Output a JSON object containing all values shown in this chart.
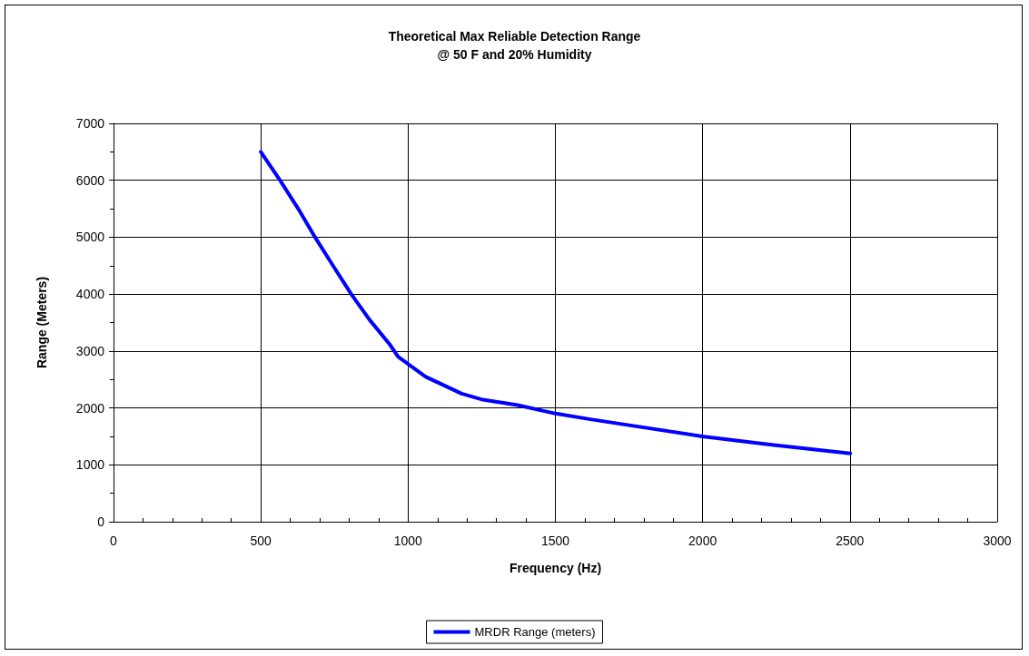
{
  "chart_data": {
    "type": "line",
    "title": "Theoretical Max Reliable Detection Range",
    "subtitle": "@ 50 F and 20% Humidity",
    "xlabel": "Frequency (Hz)",
    "ylabel": "Range (Meters)",
    "series": [
      {
        "name": "MRDR Range (meters)",
        "color": "#0000ff",
        "x": [
          500,
          565,
          627,
          684,
          745,
          807,
          869,
          940,
          966,
          1059,
          1182,
          1249,
          1372,
          1501,
          1619,
          1999,
          2235,
          2501
        ],
        "values": [
          6500,
          6000,
          5500,
          5000,
          4500,
          4000,
          3550,
          3100,
          2900,
          2550,
          2250,
          2150,
          2050,
          1900,
          1800,
          1500,
          1350,
          1200
        ]
      }
    ],
    "xlim": [
      0,
      3000
    ],
    "xticks": [
      0,
      500,
      1000,
      1500,
      2000,
      2500,
      3000
    ],
    "ylim": [
      0,
      7000
    ],
    "yticks": [
      0,
      1000,
      2000,
      3000,
      4000,
      5000,
      6000,
      7000
    ],
    "grid": true,
    "legend": "bottom",
    "marker": "none",
    "line_style": "solid"
  }
}
